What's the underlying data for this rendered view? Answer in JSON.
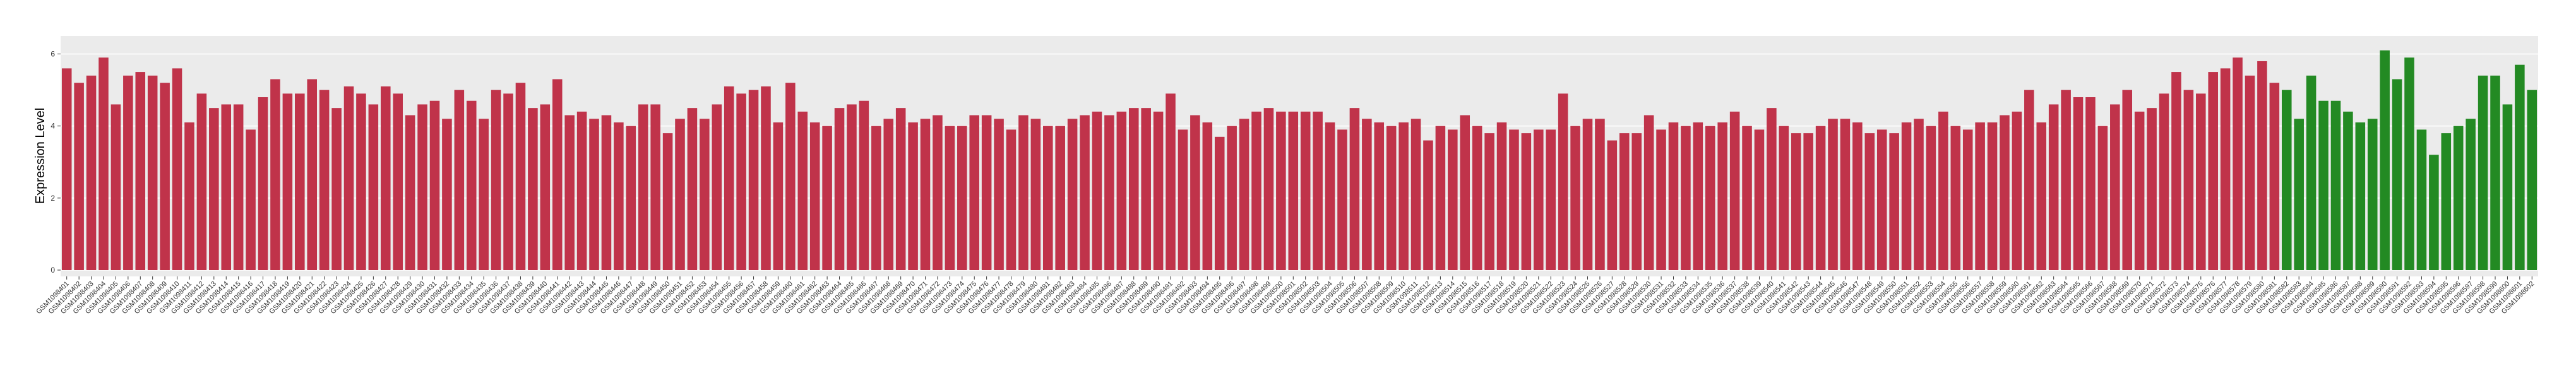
{
  "chart_data": {
    "type": "bar",
    "y_label": "Expression Level",
    "ylim": [
      0,
      6.5
    ],
    "yticks": [
      0,
      2,
      4,
      6
    ],
    "grid": true,
    "series": [
      {
        "color": "#c0334a",
        "categories": [
          "GSM1098401",
          "GSM1098402",
          "GSM1098403",
          "GSM1098404",
          "GSM1098405",
          "GSM1098406",
          "GSM1098407",
          "GSM1098408",
          "GSM1098409",
          "GSM1098410",
          "GSM1098411",
          "GSM1098412",
          "GSM1098413",
          "GSM1098414",
          "GSM1098415",
          "GSM1098416",
          "GSM1098417",
          "GSM1098418",
          "GSM1098419",
          "GSM1098420",
          "GSM1098421",
          "GSM1098422",
          "GSM1098423",
          "GSM1098424",
          "GSM1098425",
          "GSM1098426",
          "GSM1098427",
          "GSM1098428",
          "GSM1098429",
          "GSM1098430",
          "GSM1098431",
          "GSM1098432",
          "GSM1098433",
          "GSM1098434",
          "GSM1098435",
          "GSM1098436",
          "GSM1098437",
          "GSM1098438",
          "GSM1098439",
          "GSM1098440",
          "GSM1098441",
          "GSM1098442",
          "GSM1098443",
          "GSM1098444",
          "GSM1098445",
          "GSM1098446",
          "GSM1098447",
          "GSM1098448",
          "GSM1098449",
          "GSM1098450",
          "GSM1098451",
          "GSM1098452",
          "GSM1098453",
          "GSM1098454",
          "GSM1098455",
          "GSM1098456",
          "GSM1098457",
          "GSM1098458",
          "GSM1098459",
          "GSM1098460",
          "GSM1098461",
          "GSM1098462",
          "GSM1098463",
          "GSM1098464",
          "GSM1098465",
          "GSM1098466",
          "GSM1098467",
          "GSM1098468",
          "GSM1098469",
          "GSM1098470",
          "GSM1098471",
          "GSM1098472",
          "GSM1098473",
          "GSM1098474",
          "GSM1098475",
          "GSM1098476",
          "GSM1098477",
          "GSM1098478",
          "GSM1098479",
          "GSM1098480",
          "GSM1098481",
          "GSM1098482",
          "GSM1098483",
          "GSM1098484",
          "GSM1098485",
          "GSM1098486",
          "GSM1098487",
          "GSM1098488",
          "GSM1098489",
          "GSM1098490",
          "GSM1098491",
          "GSM1098492",
          "GSM1098493",
          "GSM1098494",
          "GSM1098495",
          "GSM1098496",
          "GSM1098497",
          "GSM1098498",
          "GSM1098499",
          "GSM1098500",
          "GSM1098501",
          "GSM1098502",
          "GSM1098503",
          "GSM1098504",
          "GSM1098505",
          "GSM1098506",
          "GSM1098507",
          "GSM1098508",
          "GSM1098509",
          "GSM1098510",
          "GSM1098511",
          "GSM1098512",
          "GSM1098513",
          "GSM1098514",
          "GSM1098515",
          "GSM1098516",
          "GSM1098517",
          "GSM1098518",
          "GSM1098519",
          "GSM1098520",
          "GSM1098521",
          "GSM1098522",
          "GSM1098523",
          "GSM1098524",
          "GSM1098525",
          "GSM1098526",
          "GSM1098527",
          "GSM1098528",
          "GSM1098529",
          "GSM1098530",
          "GSM1098531",
          "GSM1098532",
          "GSM1098533",
          "GSM1098534",
          "GSM1098535",
          "GSM1098536",
          "GSM1098537",
          "GSM1098538",
          "GSM1098539",
          "GSM1098540",
          "GSM1098541",
          "GSM1098542",
          "GSM1098543",
          "GSM1098544",
          "GSM1098545",
          "GSM1098546",
          "GSM1098547",
          "GSM1098548",
          "GSM1098549",
          "GSM1098550",
          "GSM1098551",
          "GSM1098552",
          "GSM1098553",
          "GSM1098554",
          "GSM1098555",
          "GSM1098556",
          "GSM1098557",
          "GSM1098558",
          "GSM1098559",
          "GSM1098560",
          "GSM1098561",
          "GSM1098562",
          "GSM1098563",
          "GSM1098564",
          "GSM1098565",
          "GSM1098566",
          "GSM1098567",
          "GSM1098568",
          "GSM1098569",
          "GSM1098570",
          "GSM1098571",
          "GSM1098572",
          "GSM1098573",
          "GSM1098574",
          "GSM1098575",
          "GSM1098576",
          "GSM1098577",
          "GSM1098578",
          "GSM1098579",
          "GSM1098580",
          "GSM1098581"
        ],
        "values": [
          5.6,
          5.2,
          5.4,
          5.9,
          4.6,
          5.4,
          5.5,
          5.4,
          5.2,
          5.6,
          4.1,
          4.9,
          4.5,
          4.6,
          4.6,
          3.9,
          4.8,
          5.3,
          4.9,
          4.9,
          5.3,
          5.0,
          4.5,
          5.1,
          4.9,
          4.6,
          5.1,
          4.9,
          4.3,
          4.6,
          4.7,
          4.2,
          5.0,
          4.7,
          4.2,
          5.0,
          4.9,
          5.2,
          4.5,
          4.6,
          5.3,
          4.3,
          4.4,
          4.2,
          4.3,
          4.1,
          4.0,
          4.6,
          4.6,
          3.8,
          4.2,
          4.5,
          4.2,
          4.6,
          5.1,
          4.9,
          5.0,
          5.1,
          4.1,
          5.2,
          4.4,
          4.1,
          4.0,
          4.5,
          4.6,
          4.7,
          4.0,
          4.2,
          4.5,
          4.1,
          4.2,
          4.3,
          4.0,
          4.0,
          4.3,
          4.3,
          4.2,
          3.9,
          4.3,
          4.2,
          4.0,
          4.0,
          4.2,
          4.3,
          4.4,
          4.3,
          4.4,
          4.5,
          4.5,
          4.4,
          4.9,
          3.9,
          4.3,
          4.1,
          3.7,
          4.0,
          4.2,
          4.4,
          4.5,
          4.4,
          4.4,
          4.4,
          4.4,
          4.1,
          3.9,
          4.5,
          4.2,
          4.1,
          4.0,
          4.1,
          4.2,
          3.6,
          4.0,
          3.9,
          4.3,
          4.0,
          3.8,
          4.1,
          3.9,
          3.8,
          3.9,
          3.9,
          4.9,
          4.0,
          4.2,
          4.2,
          3.6,
          3.8,
          3.8,
          4.3,
          3.9,
          4.1,
          4.0,
          4.1,
          4.0,
          4.1,
          4.4,
          4.0,
          3.9,
          4.5,
          4.0,
          3.8,
          3.8,
          4.0,
          4.2,
          4.2,
          4.1,
          3.8,
          3.9,
          3.8,
          4.1,
          4.2,
          4.0,
          4.4,
          4.0,
          3.9,
          4.1,
          4.1,
          4.3,
          4.4,
          5.0,
          4.1,
          4.6,
          5.0,
          4.8,
          4.8,
          4.0,
          4.6,
          5.0,
          4.4,
          4.5,
          4.9,
          5.5,
          5.0,
          4.9,
          5.5,
          5.6,
          5.9,
          5.4,
          5.8,
          5.2
        ]
      },
      {
        "color": "#238a23",
        "categories": [
          "GSM1098582",
          "GSM1098583",
          "GSM1098584",
          "GSM1098585",
          "GSM1098586",
          "GSM1098587",
          "GSM1098588",
          "GSM1098589",
          "GSM1098590",
          "GSM1098591",
          "GSM1098592",
          "GSM1098593",
          "GSM1098594",
          "GSM1098595",
          "GSM1098596",
          "GSM1098597",
          "GSM1098598",
          "GSM1098599",
          "GSM1098600",
          "GSM1098601",
          "GSM1098602"
        ],
        "values": [
          5.0,
          4.2,
          5.4,
          4.7,
          4.7,
          4.4,
          4.1,
          4.2,
          6.1,
          5.3,
          5.9,
          3.9,
          3.2,
          3.8,
          4.0,
          4.2,
          5.4,
          5.4,
          4.6,
          5.7,
          5.0
        ]
      }
    ]
  }
}
